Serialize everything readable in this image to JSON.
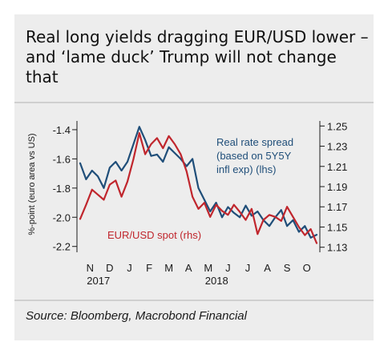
{
  "title": "Real long yields dragging EUR/USD lower – and ‘lame duck’ Trump will not change that",
  "source": "Source: Bloomberg, Macrobond Financial",
  "colors": {
    "series_real_rate": "#1f4e79",
    "series_eurusd": "#c0262d",
    "background": "#ededed"
  },
  "chart_data": {
    "type": "line",
    "x_tick_labels": [
      "N",
      "D",
      "J",
      "F",
      "M",
      "A",
      "M",
      "J",
      "J",
      "A",
      "S",
      "O"
    ],
    "year_labels": [
      "2017",
      "2018"
    ],
    "ylabel_left": "%-point (euro area vs US)",
    "left_ticks": [
      "-1.4",
      "-1.6",
      "-1.8",
      "-2.0",
      "-2.2"
    ],
    "right_ticks": [
      "1.25",
      "1.23",
      "1.21",
      "1.19",
      "1.17",
      "1.15",
      "1.13"
    ],
    "ylim_left": [
      -2.24,
      -1.34
    ],
    "ylim_right": [
      1.125,
      1.255
    ],
    "x_range_months": [
      0,
      12
    ],
    "annotations": {
      "real_rate_line1": "Real rate spread",
      "real_rate_line2": "(based on 5Y5Y",
      "real_rate_line3": "infl exp) (lhs)",
      "eurusd": "EUR/USD spot (rhs)"
    },
    "series": [
      {
        "name": "Real rate spread (based on 5Y5Y infl exp) (lhs)",
        "axis": "left",
        "x": [
          0.0,
          0.3,
          0.6,
          0.9,
          1.2,
          1.5,
          1.8,
          2.1,
          2.4,
          2.7,
          3.0,
          3.3,
          3.6,
          3.9,
          4.2,
          4.5,
          4.8,
          5.1,
          5.4,
          5.7,
          6.0,
          6.3,
          6.6,
          6.9,
          7.2,
          7.5,
          7.8,
          8.1,
          8.4,
          8.7,
          9.0,
          9.3,
          9.6,
          9.9,
          10.2,
          10.5,
          10.8,
          11.1,
          11.4,
          11.7,
          12.0
        ],
        "values": [
          -1.63,
          -1.74,
          -1.68,
          -1.72,
          -1.8,
          -1.66,
          -1.62,
          -1.68,
          -1.62,
          -1.5,
          -1.38,
          -1.47,
          -1.58,
          -1.57,
          -1.62,
          -1.52,
          -1.56,
          -1.6,
          -1.65,
          -1.6,
          -1.8,
          -1.88,
          -1.96,
          -1.9,
          -2.0,
          -1.93,
          -1.97,
          -2.0,
          -1.92,
          -1.99,
          -1.96,
          -2.02,
          -2.06,
          -2.0,
          -1.95,
          -2.06,
          -2.02,
          -2.1,
          -2.06,
          -2.14,
          -2.12
        ]
      },
      {
        "name": "EUR/USD spot (rhs)",
        "axis": "right",
        "x": [
          0.0,
          0.3,
          0.6,
          0.9,
          1.2,
          1.5,
          1.8,
          2.1,
          2.4,
          2.7,
          3.0,
          3.3,
          3.6,
          3.9,
          4.2,
          4.5,
          4.8,
          5.1,
          5.4,
          5.7,
          6.0,
          6.3,
          6.6,
          6.9,
          7.2,
          7.5,
          7.8,
          8.1,
          8.4,
          8.7,
          9.0,
          9.3,
          9.6,
          9.9,
          10.2,
          10.5,
          10.8,
          11.1,
          11.4,
          11.7,
          12.0
        ],
        "values": [
          1.158,
          1.172,
          1.187,
          1.182,
          1.177,
          1.192,
          1.196,
          1.18,
          1.195,
          1.217,
          1.243,
          1.222,
          1.232,
          1.238,
          1.228,
          1.24,
          1.232,
          1.222,
          1.205,
          1.18,
          1.168,
          1.174,
          1.16,
          1.172,
          1.166,
          1.162,
          1.172,
          1.165,
          1.157,
          1.168,
          1.143,
          1.157,
          1.162,
          1.16,
          1.156,
          1.17,
          1.16,
          1.15,
          1.142,
          1.148,
          1.134
        ]
      }
    ]
  }
}
